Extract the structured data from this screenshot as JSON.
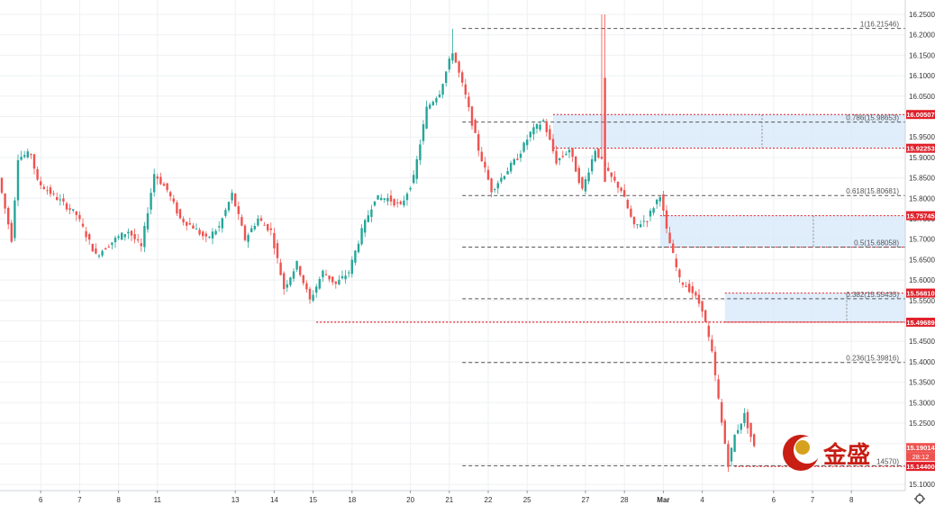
{
  "chart_data": {
    "type": "candlestick",
    "instrument": "",
    "ylim": [
      15.1,
      16.25
    ],
    "price_ticks": [
      "16.25000",
      "16.20000",
      "16.15000",
      "16.10000",
      "16.05000",
      "15.95000",
      "15.90000",
      "15.85000",
      "15.80000",
      "15.75000",
      "15.70000",
      "15.65000",
      "15.60000",
      "15.55000",
      "15.45000",
      "15.40000",
      "15.35000",
      "15.30000",
      "15.25000",
      "15.10000"
    ],
    "date_ticks": [
      {
        "label": "6",
        "bar": 12
      },
      {
        "label": "7",
        "bar": 24
      },
      {
        "label": "8",
        "bar": 36
      },
      {
        "label": "11",
        "bar": 48
      },
      {
        "label": "13",
        "bar": 72
      },
      {
        "label": "14",
        "bar": 84
      },
      {
        "label": "15",
        "bar": 96
      },
      {
        "label": "18",
        "bar": 108
      },
      {
        "label": "20",
        "bar": 126
      },
      {
        "label": "21",
        "bar": 138
      },
      {
        "label": "22",
        "bar": 150
      },
      {
        "label": "25",
        "bar": 162
      },
      {
        "label": "27",
        "bar": 180
      },
      {
        "label": "28",
        "bar": 192
      },
      {
        "label": "Mar",
        "bar": 204
      },
      {
        "label": "4",
        "bar": 216
      },
      {
        "label": "6",
        "bar": 238
      },
      {
        "label": "7",
        "bar": 250
      },
      {
        "label": "8",
        "bar": 262
      }
    ],
    "fib_levels": [
      {
        "label": "1(16.21546)",
        "value": 16.21546
      },
      {
        "label": "0.786(15.98653)",
        "value": 15.98653
      },
      {
        "label": "0.618(15.80681)",
        "value": 15.80681
      },
      {
        "label": "0.5(15.68058)",
        "value": 15.68058
      },
      {
        "label": "0.382(15.55435)",
        "value": 15.55435
      },
      {
        "label": "0.236(15.39816)",
        "value": 15.39816
      },
      {
        "label": "14570)",
        "value": 15.1457
      }
    ],
    "zones": [
      {
        "top": 16.00507,
        "bottom": 15.92253,
        "top_label": "16.00507",
        "bottom_label": "15.92253"
      },
      {
        "top": 15.75745,
        "bottom": 15.68058,
        "top_label": "15.75745",
        "bottom_label": ""
      },
      {
        "top": 15.5681,
        "bottom": 15.49689,
        "top_label": "15.56810",
        "bottom_label": "15.49689"
      }
    ],
    "support_line": {
      "value": 15.49689
    },
    "low_line": {
      "value": 15.144,
      "label": "15.14400"
    },
    "last_price": {
      "value": 15.19014,
      "label": "15.19014",
      "countdown": "28:12"
    },
    "anchors": [
      {
        "bar": 0,
        "price": 15.85
      },
      {
        "bar": 4,
        "price": 15.7
      },
      {
        "bar": 6,
        "price": 15.9
      },
      {
        "bar": 10,
        "price": 15.91
      },
      {
        "bar": 12,
        "price": 15.84
      },
      {
        "bar": 18,
        "price": 15.8
      },
      {
        "bar": 24,
        "price": 15.76
      },
      {
        "bar": 30,
        "price": 15.66
      },
      {
        "bar": 36,
        "price": 15.7
      },
      {
        "bar": 40,
        "price": 15.72
      },
      {
        "bar": 44,
        "price": 15.68
      },
      {
        "bar": 48,
        "price": 15.86
      },
      {
        "bar": 52,
        "price": 15.82
      },
      {
        "bar": 56,
        "price": 15.75
      },
      {
        "bar": 60,
        "price": 15.73
      },
      {
        "bar": 64,
        "price": 15.7
      },
      {
        "bar": 68,
        "price": 15.73
      },
      {
        "bar": 72,
        "price": 15.81
      },
      {
        "bar": 76,
        "price": 15.7
      },
      {
        "bar": 80,
        "price": 15.75
      },
      {
        "bar": 84,
        "price": 15.72
      },
      {
        "bar": 88,
        "price": 15.58
      },
      {
        "bar": 92,
        "price": 15.64
      },
      {
        "bar": 96,
        "price": 15.55
      },
      {
        "bar": 100,
        "price": 15.62
      },
      {
        "bar": 104,
        "price": 15.59
      },
      {
        "bar": 108,
        "price": 15.62
      },
      {
        "bar": 112,
        "price": 15.72
      },
      {
        "bar": 116,
        "price": 15.8
      },
      {
        "bar": 120,
        "price": 15.8
      },
      {
        "bar": 124,
        "price": 15.78
      },
      {
        "bar": 128,
        "price": 15.85
      },
      {
        "bar": 132,
        "price": 16.02
      },
      {
        "bar": 136,
        "price": 16.06
      },
      {
        "bar": 140,
        "price": 16.16
      },
      {
        "bar": 144,
        "price": 16.05
      },
      {
        "bar": 148,
        "price": 15.92
      },
      {
        "bar": 152,
        "price": 15.82
      },
      {
        "bar": 156,
        "price": 15.86
      },
      {
        "bar": 160,
        "price": 15.9
      },
      {
        "bar": 164,
        "price": 15.96
      },
      {
        "bar": 168,
        "price": 15.99
      },
      {
        "bar": 172,
        "price": 15.89
      },
      {
        "bar": 176,
        "price": 15.92
      },
      {
        "bar": 180,
        "price": 15.82
      },
      {
        "bar": 184,
        "price": 15.92
      },
      {
        "bar": 188,
        "price": 15.86
      },
      {
        "bar": 192,
        "price": 15.82
      },
      {
        "bar": 196,
        "price": 15.73
      },
      {
        "bar": 200,
        "price": 15.75
      },
      {
        "bar": 204,
        "price": 15.81
      },
      {
        "bar": 206,
        "price": 15.72
      },
      {
        "bar": 210,
        "price": 15.6
      },
      {
        "bar": 214,
        "price": 15.57
      },
      {
        "bar": 217,
        "price": 15.53
      },
      {
        "bar": 220,
        "price": 15.42
      },
      {
        "bar": 223,
        "price": 15.25
      },
      {
        "bar": 225,
        "price": 15.15
      },
      {
        "bar": 227,
        "price": 15.22
      },
      {
        "bar": 230,
        "price": 15.27
      },
      {
        "bar": 233,
        "price": 15.19
      }
    ],
    "bar_start_x": 2,
    "bar_step": 3.6
  },
  "brand": {
    "name": "金盛"
  },
  "ui": {
    "settings_icon": "gear-icon"
  }
}
